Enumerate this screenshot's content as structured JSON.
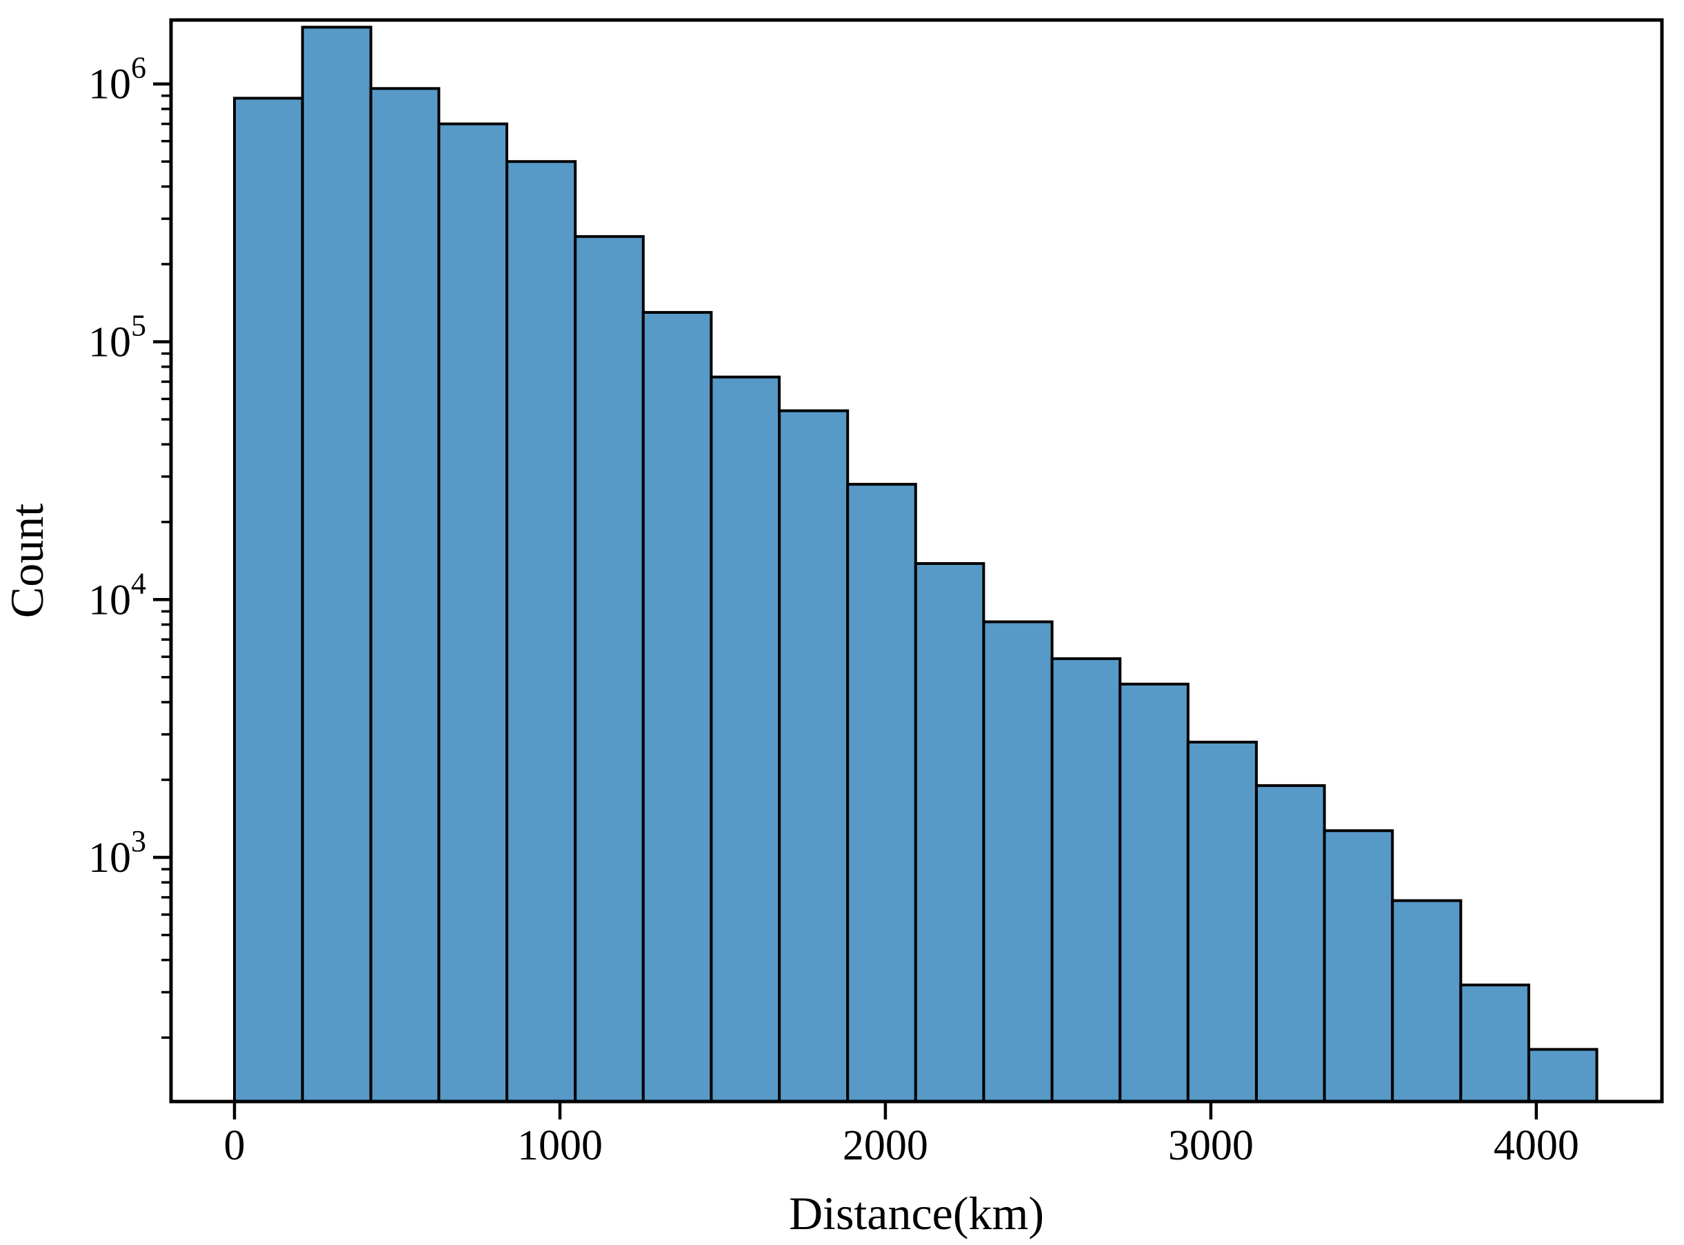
{
  "figure": {
    "background": "#ffffff",
    "text_color": "#000000"
  },
  "chart_data": {
    "type": "bar",
    "subtype": "histogram",
    "title": "",
    "xlabel": "Distance(km)",
    "ylabel": "Count",
    "xscale": "linear",
    "yscale": "log",
    "grid": false,
    "legend": false,
    "bar_color": "#5799C7",
    "bar_edge_color": "#000000",
    "spine_color": "#000000",
    "bin_edges_km": [
      0,
      209,
      419,
      628,
      837,
      1047,
      1256,
      1465,
      1674,
      1884,
      2093,
      2302,
      2512,
      2721,
      2930,
      3140,
      3349,
      3558,
      3768,
      3977,
      4186
    ],
    "counts": [
      880000,
      1660000,
      960000,
      700000,
      500000,
      256000,
      130000,
      73000,
      54000,
      28000,
      13800,
      8200,
      5900,
      4700,
      2800,
      1900,
      1270,
      680,
      320,
      180
    ],
    "x_tick_values": [
      0,
      1000,
      2000,
      3000,
      4000
    ],
    "x_tick_labels": [
      "0",
      "1000",
      "2000",
      "3000",
      "4000"
    ],
    "y_tick_base": "10",
    "y_tick_exponents": [
      6,
      5,
      4,
      3
    ],
    "y_minor_mantissas": [
      2,
      3,
      4,
      5,
      6,
      7,
      8,
      9
    ],
    "xlim_km": [
      -195,
      4386
    ],
    "ylim": [
      113,
      1770000
    ]
  }
}
